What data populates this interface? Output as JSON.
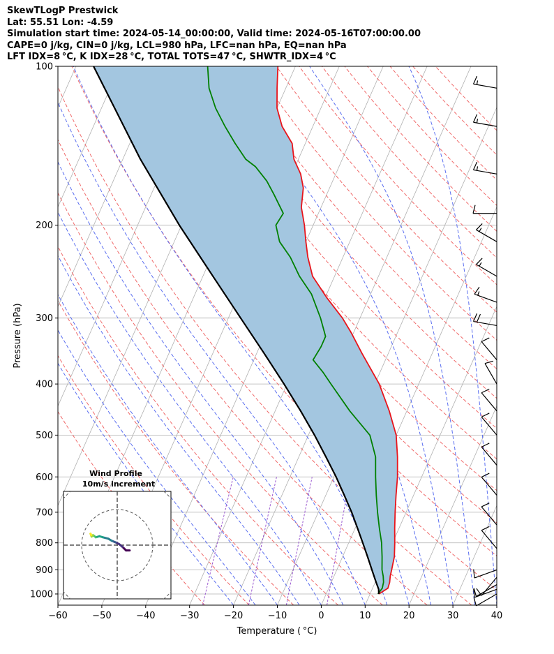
{
  "header": {
    "line1": "SkewTLogP Prestwick",
    "line2": "Lat: 55.51   Lon: -4.59",
    "line3": "Simulation start time: 2024-05-14_00:00:00, Valid time: 2024-05-16T07:00:00.00",
    "line4": "CAPE=0 j/kg, CIN=0 j/kg, LCL=980 hPa, LFC=nan hPa, EQ=nan hPa",
    "line5": "LFT IDX=8 °C, K IDX=28 °C, TOTAL TOTS=47 °C, SHWTR_IDX=4 °C"
  },
  "chart_data": {
    "type": "line",
    "subtype": "skew-t log-p",
    "xlabel": "Temperature ( °C)",
    "ylabel": "Pressure (hPa)",
    "xlim": [
      -60,
      40
    ],
    "ylim": [
      1050,
      100
    ],
    "y_scale": "log",
    "grid": true,
    "x_ticks": [
      "−60",
      "−50",
      "−40",
      "−30",
      "−20",
      "−10",
      "0",
      "10",
      "20",
      "30",
      "40"
    ],
    "y_ticks": [
      "100",
      "200",
      "300",
      "400",
      "500",
      "600",
      "700",
      "800",
      "900",
      "1000"
    ],
    "y_tick_values": [
      100,
      200,
      300,
      400,
      500,
      600,
      700,
      800,
      900,
      1000
    ],
    "skew_t_per_decade": 53,
    "colors": {
      "temperature": "#e8141b",
      "dewpoint": "#008000",
      "parcel": "#000000",
      "cape_fill": "#a3c6e0",
      "dry_adiabat": "#f06a6a",
      "moist_adiabat": "#5a6ef0",
      "mixing_ratio": "#9b59d0",
      "isotherm": "#b0b0b0"
    },
    "series": [
      {
        "key": "temperature",
        "points": [
          [
            1000,
            12
          ],
          [
            975,
            13.5
          ],
          [
            950,
            13.3
          ],
          [
            925,
            12.8
          ],
          [
            900,
            12.5
          ],
          [
            850,
            11.8
          ],
          [
            800,
            10.5
          ],
          [
            750,
            9
          ],
          [
            700,
            7.5
          ],
          [
            650,
            6
          ],
          [
            600,
            4.5
          ],
          [
            550,
            2.5
          ],
          [
            500,
            0
          ],
          [
            450,
            -4
          ],
          [
            400,
            -9
          ],
          [
            350,
            -16
          ],
          [
            320,
            -20.5
          ],
          [
            300,
            -24
          ],
          [
            275,
            -29.5
          ],
          [
            250,
            -35
          ],
          [
            230,
            -38
          ],
          [
            215,
            -40
          ],
          [
            200,
            -42
          ],
          [
            185,
            -44.5
          ],
          [
            170,
            -46
          ],
          [
            160,
            -48
          ],
          [
            150,
            -51
          ],
          [
            140,
            -53
          ],
          [
            130,
            -57
          ],
          [
            120,
            -60
          ],
          [
            110,
            -62
          ],
          [
            100,
            -64
          ]
        ]
      },
      {
        "key": "dewpoint",
        "points": [
          [
            1000,
            11.8
          ],
          [
            975,
            12.2
          ],
          [
            950,
            11.9
          ],
          [
            925,
            11.2
          ],
          [
            900,
            10.3
          ],
          [
            850,
            9
          ],
          [
            800,
            7.5
          ],
          [
            750,
            5.5
          ],
          [
            700,
            3.5
          ],
          [
            650,
            1.5
          ],
          [
            600,
            -0.5
          ],
          [
            550,
            -2.5
          ],
          [
            500,
            -6
          ],
          [
            450,
            -13
          ],
          [
            400,
            -20
          ],
          [
            380,
            -23
          ],
          [
            360,
            -26.5
          ],
          [
            340,
            -26
          ],
          [
            325,
            -26
          ],
          [
            300,
            -29
          ],
          [
            270,
            -33.5
          ],
          [
            250,
            -38
          ],
          [
            230,
            -42
          ],
          [
            215,
            -46
          ],
          [
            200,
            -48.5
          ],
          [
            190,
            -48
          ],
          [
            175,
            -52
          ],
          [
            165,
            -55
          ],
          [
            155,
            -59
          ],
          [
            150,
            -62
          ],
          [
            140,
            -66
          ],
          [
            130,
            -70
          ],
          [
            120,
            -74
          ],
          [
            110,
            -77.5
          ],
          [
            100,
            -80
          ]
        ]
      },
      {
        "key": "parcel",
        "points": [
          [
            1000,
            12
          ],
          [
            980,
            11.5
          ],
          [
            950,
            10.2
          ],
          [
            900,
            8
          ],
          [
            850,
            5.7
          ],
          [
            800,
            3.2
          ],
          [
            750,
            0.5
          ],
          [
            700,
            -2.4
          ],
          [
            650,
            -5.8
          ],
          [
            600,
            -9.5
          ],
          [
            550,
            -13.8
          ],
          [
            500,
            -18.6
          ],
          [
            450,
            -24.2
          ],
          [
            400,
            -30.7
          ],
          [
            350,
            -38.3
          ],
          [
            300,
            -47.2
          ],
          [
            250,
            -57.7
          ],
          [
            200,
            -70.5
          ],
          [
            150,
            -86
          ],
          [
            100,
            -106
          ]
        ]
      }
    ]
  },
  "hodograph": {
    "title_line1": "Wind Profile",
    "title_line2": "10m/s increment",
    "u": [
      3.5,
      2.5,
      1.5,
      0.5,
      -0.5,
      -1.5,
      -2.5,
      -4,
      -5,
      -6,
      -6.8,
      -7.2,
      -7.5,
      -7.3
    ],
    "v": [
      -1.5,
      -1.5,
      -0.5,
      0.3,
      0.8,
      1.2,
      1.8,
      2.2,
      2.5,
      2.2,
      2.8,
      2.4,
      3.2,
      2.8
    ]
  },
  "wind_barbs": {
    "pressures": [
      110,
      130,
      160,
      190,
      215,
      250,
      280,
      310,
      360,
      400,
      450,
      500,
      570,
      650,
      740,
      820,
      900,
      930,
      960,
      980,
      1000
    ],
    "speeds_kt": [
      15,
      15,
      15,
      10,
      15,
      15,
      15,
      20,
      10,
      10,
      10,
      10,
      10,
      10,
      10,
      10,
      10,
      10,
      10,
      10,
      10
    ],
    "dirs_deg": [
      280,
      280,
      280,
      270,
      300,
      300,
      290,
      280,
      320,
      330,
      320,
      320,
      320,
      320,
      320,
      320,
      250,
      220,
      240,
      250,
      240
    ]
  }
}
